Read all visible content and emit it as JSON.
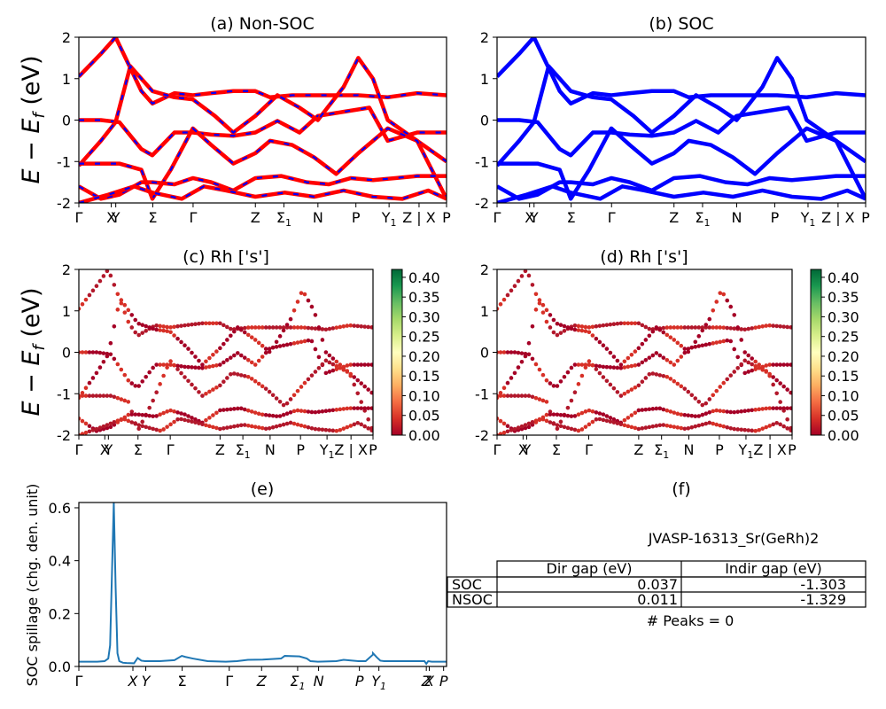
{
  "figure": {
    "ylabel_main": "E − E_f (eV)",
    "colorbar_ticks": [
      "0.00",
      "0.05",
      "0.10",
      "0.15",
      "0.20",
      "0.25",
      "0.30",
      "0.35",
      "0.40"
    ],
    "colorbar_range": [
      0,
      0.42
    ]
  },
  "panels": {
    "a": {
      "title": "(a) Non-SOC"
    },
    "b": {
      "title": "(b) SOC"
    },
    "c": {
      "title": "(c)  Rh ['s']"
    },
    "d": {
      "title": "(d) Rh ['s']"
    },
    "e": {
      "title": "(e)",
      "ylabel": "SOC spillage (chg. den. unit)"
    },
    "f": {
      "title": "(f)",
      "material": "JVASP-16313_Sr(GeRh)2",
      "peaks": "# Peaks = 0"
    }
  },
  "table": {
    "headers": [
      "",
      "Dir gap (eV)",
      "Indir gap (eV)"
    ],
    "rows": [
      {
        "label": "SOC",
        "dir": "0.037",
        "indir": "-1.303"
      },
      {
        "label": "NSOC",
        "dir": "0.011",
        "indir": "-1.329"
      }
    ]
  },
  "chart_data": [
    {
      "type": "line",
      "title": "(a) Non-SOC",
      "ylabel": "E − E_f (eV)",
      "ylim": [
        -2,
        2
      ],
      "yticks": [
        -2,
        -1,
        0,
        1,
        2
      ],
      "xticks": [
        "Γ",
        "X",
        "Y",
        "Σ",
        "Γ",
        "Z",
        "Σ1",
        "N",
        "P",
        "Y1",
        "Z | X",
        "P"
      ],
      "xtick_pos": [
        0,
        0.0882,
        0.1004,
        0.2011,
        0.3107,
        0.4801,
        0.5576,
        0.6502,
        0.7535,
        0.8437,
        0.9252,
        1.0
      ],
      "series": [
        {
          "color": "#ff0000",
          "dashed_with": "#0000ff",
          "values_x": [
            0,
            0.06,
            0.11,
            0.17,
            0.2,
            0.26,
            0.31,
            0.36,
            0.42,
            0.48,
            0.54,
            0.6,
            0.65,
            0.72,
            0.79,
            0.84,
            0.92,
            1.0
          ],
          "values_y": [
            0,
            0,
            -0.05,
            -0.7,
            -0.85,
            -0.3,
            -0.3,
            -0.35,
            -0.38,
            -0.3,
            -0.02,
            -0.3,
            0.1,
            0.2,
            0.3,
            -0.5,
            -0.3,
            -0.3
          ]
        },
        {
          "color": "#ff0000",
          "values_x": [
            0,
            0.06,
            0.1,
            0.17,
            0.2,
            0.26,
            0.31,
            0.36,
            0.42,
            0.48,
            0.52,
            0.58,
            0.65,
            0.72,
            0.76,
            0.84,
            0.92,
            1.0
          ],
          "values_y": [
            1.05,
            1.6,
            2.0,
            0.7,
            0.4,
            0.65,
            0.6,
            0.65,
            0.7,
            0.7,
            0.55,
            0.6,
            0.6,
            0.6,
            0.6,
            0.55,
            0.65,
            0.6
          ]
        },
        {
          "color": "#ff0000",
          "values_x": [
            0,
            0.06,
            0.1,
            0.14,
            0.2,
            0.26,
            0.31,
            0.37,
            0.42,
            0.48,
            0.54,
            0.6,
            0.65,
            0.72,
            0.76,
            0.8,
            0.84,
            0.92,
            1.0
          ],
          "values_y": [
            -1.1,
            -0.5,
            -0.05,
            1.3,
            0.7,
            0.55,
            0.5,
            0.1,
            -0.3,
            0.1,
            0.6,
            0.3,
            0.0,
            0.8,
            1.5,
            1.0,
            0.0,
            -0.5,
            -1.0
          ]
        },
        {
          "color": "#ff0000",
          "values_x": [
            0,
            0.06,
            0.11,
            0.17,
            0.2,
            0.25,
            0.31,
            0.36,
            0.42,
            0.48,
            0.52,
            0.58,
            0.64,
            0.7,
            0.76,
            0.84,
            0.92,
            1.0
          ],
          "values_y": [
            -1.05,
            -1.05,
            -1.05,
            -1.2,
            -1.9,
            -1.2,
            -0.2,
            -0.6,
            -1.05,
            -0.8,
            -0.5,
            -0.6,
            -0.9,
            -1.3,
            -0.8,
            -0.2,
            -0.5,
            -1.9
          ]
        },
        {
          "color": "#ff0000",
          "values_x": [
            0,
            0.06,
            0.11,
            0.17,
            0.2,
            0.26,
            0.31,
            0.36,
            0.42,
            0.48,
            0.55,
            0.62,
            0.68,
            0.74,
            0.8,
            0.86,
            0.92,
            1.0
          ],
          "values_y": [
            -1.6,
            -1.9,
            -1.8,
            -1.5,
            -1.5,
            -1.55,
            -1.4,
            -1.5,
            -1.7,
            -1.4,
            -1.35,
            -1.5,
            -1.55,
            -1.4,
            -1.45,
            -1.4,
            -1.35,
            -1.35
          ]
        },
        {
          "color": "#ff0000",
          "values_x": [
            0,
            0.08,
            0.15,
            0.2,
            0.28,
            0.34,
            0.4,
            0.48,
            0.56,
            0.64,
            0.72,
            0.8,
            0.88,
            0.95,
            1.0
          ],
          "values_y": [
            -2.0,
            -1.8,
            -1.6,
            -1.75,
            -1.9,
            -1.6,
            -1.7,
            -1.85,
            -1.75,
            -1.85,
            -1.7,
            -1.85,
            -1.9,
            -1.7,
            -1.9
          ]
        }
      ]
    },
    {
      "type": "line",
      "title": "(b) SOC",
      "ylim": [
        -2,
        2
      ],
      "yticks": [
        -2,
        -1,
        0,
        1,
        2
      ],
      "xticks": [
        "Γ",
        "X",
        "Y",
        "Σ",
        "Γ",
        "Z",
        "Σ1",
        "N",
        "P",
        "Y1",
        "Z | X",
        "P"
      ],
      "series": [
        {
          "color": "#0000ff",
          "values_x": [
            0,
            0.06,
            0.11,
            0.17,
            0.2,
            0.26,
            0.31,
            0.36,
            0.42,
            0.48,
            0.54,
            0.6,
            0.65,
            0.72,
            0.79,
            0.84,
            0.92,
            1.0
          ],
          "values_y": [
            0,
            0,
            -0.05,
            -0.7,
            -0.85,
            -0.3,
            -0.3,
            -0.35,
            -0.38,
            -0.3,
            -0.02,
            -0.3,
            0.1,
            0.2,
            0.3,
            -0.5,
            -0.3,
            -0.3
          ]
        },
        {
          "color": "#0000ff",
          "values_x": [
            0,
            0.06,
            0.1,
            0.17,
            0.2,
            0.26,
            0.31,
            0.36,
            0.42,
            0.48,
            0.52,
            0.58,
            0.65,
            0.72,
            0.76,
            0.84,
            0.92,
            1.0
          ],
          "values_y": [
            1.05,
            1.6,
            2.0,
            0.7,
            0.4,
            0.65,
            0.6,
            0.65,
            0.7,
            0.7,
            0.55,
            0.6,
            0.6,
            0.6,
            0.6,
            0.55,
            0.65,
            0.6
          ]
        },
        {
          "color": "#0000ff",
          "values_x": [
            0,
            0.06,
            0.1,
            0.14,
            0.2,
            0.26,
            0.31,
            0.37,
            0.42,
            0.48,
            0.54,
            0.6,
            0.65,
            0.72,
            0.76,
            0.8,
            0.84,
            0.92,
            1.0
          ],
          "values_y": [
            -1.1,
            -0.5,
            -0.05,
            1.3,
            0.7,
            0.55,
            0.5,
            0.1,
            -0.3,
            0.1,
            0.6,
            0.3,
            0.0,
            0.8,
            1.5,
            1.0,
            0.0,
            -0.5,
            -1.0
          ]
        },
        {
          "color": "#0000ff",
          "values_x": [
            0,
            0.06,
            0.11,
            0.17,
            0.2,
            0.25,
            0.31,
            0.36,
            0.42,
            0.48,
            0.52,
            0.58,
            0.64,
            0.7,
            0.76,
            0.84,
            0.92,
            1.0
          ],
          "values_y": [
            -1.05,
            -1.05,
            -1.05,
            -1.2,
            -1.9,
            -1.2,
            -0.2,
            -0.6,
            -1.05,
            -0.8,
            -0.5,
            -0.6,
            -0.9,
            -1.3,
            -0.8,
            -0.2,
            -0.5,
            -1.9
          ]
        },
        {
          "color": "#0000ff",
          "values_x": [
            0,
            0.06,
            0.11,
            0.17,
            0.2,
            0.26,
            0.31,
            0.36,
            0.42,
            0.48,
            0.55,
            0.62,
            0.68,
            0.74,
            0.8,
            0.86,
            0.92,
            1.0
          ],
          "values_y": [
            -1.6,
            -1.9,
            -1.8,
            -1.5,
            -1.5,
            -1.55,
            -1.4,
            -1.5,
            -1.7,
            -1.4,
            -1.35,
            -1.5,
            -1.55,
            -1.4,
            -1.45,
            -1.4,
            -1.35,
            -1.35
          ]
        },
        {
          "color": "#0000ff",
          "values_x": [
            0,
            0.08,
            0.15,
            0.2,
            0.28,
            0.34,
            0.4,
            0.48,
            0.56,
            0.64,
            0.72,
            0.8,
            0.88,
            0.95,
            1.0
          ],
          "values_y": [
            -2.0,
            -1.8,
            -1.6,
            -1.75,
            -1.9,
            -1.6,
            -1.7,
            -1.85,
            -1.75,
            -1.85,
            -1.7,
            -1.85,
            -1.9,
            -1.7,
            -1.9
          ]
        }
      ]
    },
    {
      "type": "scatter",
      "title": "(c)  Rh ['s']",
      "ylabel": "E − E_f (eV)",
      "ylim": [
        -2,
        2
      ],
      "yticks": [
        -2,
        -1,
        0,
        1,
        2
      ],
      "xticks": [
        "Γ",
        "X",
        "Y",
        "Σ",
        "Γ",
        "Z",
        "Σ1",
        "N",
        "P",
        "Y1",
        "Z | X",
        "P"
      ],
      "xtick_pos": [
        0,
        0.0882,
        0.1004,
        0.2011,
        0.3107,
        0.4801,
        0.5576,
        0.6502,
        0.7535,
        0.8437,
        0.9252,
        1.0
      ],
      "colorbar": {
        "cmap": "RdYlGn",
        "range": [
          0,
          0.42
        ]
      },
      "weight_examples": [
        0.0,
        0.05,
        0.1,
        0.3
      ]
    },
    {
      "type": "scatter",
      "title": "(d) Rh ['s']",
      "ylim": [
        -2,
        2
      ],
      "yticks": [
        -2,
        -1,
        0,
        1,
        2
      ],
      "xticks": [
        "Γ",
        "X",
        "Y",
        "Σ",
        "Γ",
        "Z",
        "Σ1",
        "N",
        "P",
        "Y1",
        "Z | X",
        "P"
      ],
      "colorbar": {
        "cmap": "RdYlGn",
        "range": [
          0,
          0.42
        ]
      }
    },
    {
      "type": "line",
      "title": "(e)",
      "ylabel": "SOC spillage (chg. den. unit)",
      "ylim": [
        0,
        0.62
      ],
      "yticks": [
        0.0,
        0.2,
        0.4,
        0.6
      ],
      "xticks": [
        "Γ",
        "X",
        "Y",
        "Σ",
        "Γ",
        "Z",
        "Σ1",
        "N",
        "P",
        "Y1",
        "Z",
        "X",
        "P"
      ],
      "xtick_pos": [
        0,
        0.147,
        0.182,
        0.281,
        0.409,
        0.497,
        0.595,
        0.652,
        0.763,
        0.816,
        0.945,
        0.953,
        0.992
      ],
      "x": [
        0,
        0.05,
        0.07,
        0.08,
        0.085,
        0.09,
        0.095,
        0.1,
        0.105,
        0.11,
        0.12,
        0.13,
        0.15,
        0.16,
        0.17,
        0.18,
        0.22,
        0.26,
        0.28,
        0.29,
        0.31,
        0.35,
        0.4,
        0.43,
        0.46,
        0.5,
        0.55,
        0.56,
        0.6,
        0.62,
        0.63,
        0.65,
        0.7,
        0.72,
        0.76,
        0.78,
        0.8,
        0.8,
        0.81,
        0.82,
        0.83,
        0.9,
        0.94,
        0.945,
        0.95,
        0.96,
        1.0
      ],
      "y": [
        0.018,
        0.018,
        0.02,
        0.03,
        0.08,
        0.35,
        0.62,
        0.3,
        0.05,
        0.02,
        0.014,
        0.013,
        0.012,
        0.032,
        0.022,
        0.02,
        0.02,
        0.024,
        0.04,
        0.036,
        0.03,
        0.02,
        0.018,
        0.02,
        0.025,
        0.026,
        0.03,
        0.04,
        0.038,
        0.03,
        0.02,
        0.018,
        0.02,
        0.025,
        0.02,
        0.02,
        0.045,
        0.05,
        0.035,
        0.022,
        0.02,
        0.02,
        0.02,
        0.01,
        0.02,
        0.018,
        0.018
      ],
      "color": "#1f77b4"
    }
  ]
}
